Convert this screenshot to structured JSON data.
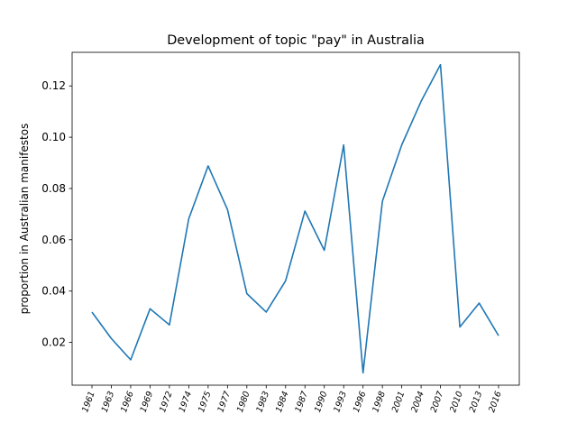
{
  "chart_data": {
    "type": "line",
    "title": "Development of topic \"pay\" in Australia",
    "xlabel": "",
    "ylabel": "proportion in Australian manifestos",
    "categories": [
      "1961",
      "1963",
      "1966",
      "1969",
      "1972",
      "1974",
      "1975",
      "1977",
      "1980",
      "1983",
      "1984",
      "1987",
      "1990",
      "1993",
      "1996",
      "1998",
      "2001",
      "2004",
      "2007",
      "2010",
      "2013",
      "2016"
    ],
    "series": [
      {
        "values": [
          0.0318,
          0.0215,
          0.0132,
          0.0331,
          0.0268,
          0.0682,
          0.0888,
          0.0718,
          0.039,
          0.0318,
          0.044,
          0.0712,
          0.0559,
          0.097,
          0.0081,
          0.075,
          0.097,
          0.114,
          0.1283,
          0.026,
          0.0353,
          0.0226
        ],
        "color": "#1f77b4"
      }
    ],
    "ylim": [
      0.0033,
      0.1331
    ],
    "yticks": [
      0.02,
      0.04,
      0.06,
      0.08,
      0.1,
      0.12
    ],
    "ytick_labels": [
      "0.02",
      "0.04",
      "0.06",
      "0.08",
      "0.10",
      "0.12"
    ],
    "grid": false,
    "legend": "none"
  }
}
